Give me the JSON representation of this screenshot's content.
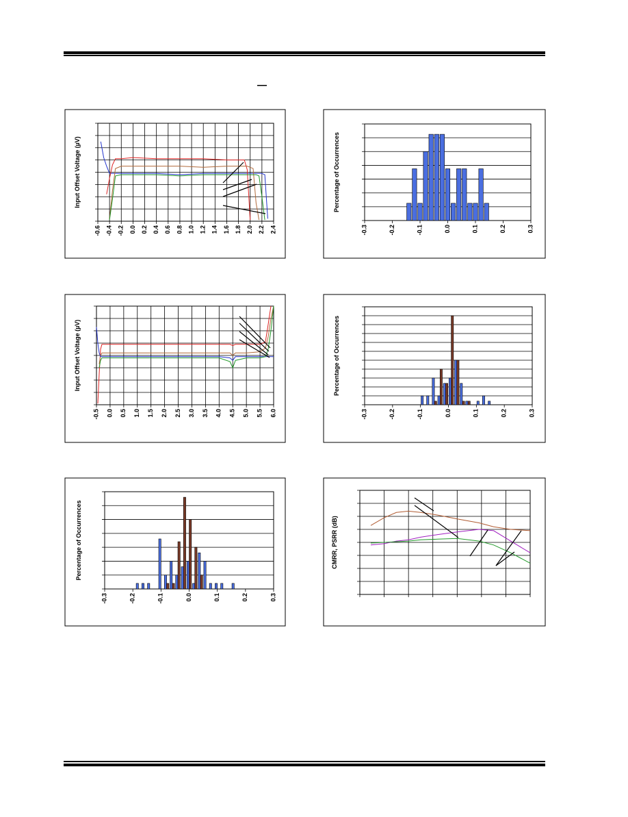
{
  "chart_data": [
    {
      "type": "line",
      "ylabel": "Input Offset Voltage (µV)",
      "grid": "both",
      "xlim": [
        -0.6,
        2.4
      ],
      "xticks": [
        {
          "value": -0.6,
          "label": "-0.6"
        },
        {
          "value": -0.4,
          "label": "-0.4"
        },
        {
          "value": -0.2,
          "label": "-0.2"
        },
        {
          "value": 0,
          "label": "0.0"
        },
        {
          "value": 0.2,
          "label": "0.2"
        },
        {
          "value": 0.4,
          "label": "0.4"
        },
        {
          "value": 0.6,
          "label": "0.6"
        },
        {
          "value": 0.8,
          "label": "0.8"
        },
        {
          "value": 1,
          "label": "1.0"
        },
        {
          "value": 1.2,
          "label": "1.2"
        },
        {
          "value": 1.4,
          "label": "1.4"
        },
        {
          "value": 1.6,
          "label": "1.6"
        },
        {
          "value": 1.8,
          "label": "1.8"
        },
        {
          "value": 2,
          "label": "2.0"
        },
        {
          "value": 2.2,
          "label": "2.2"
        },
        {
          "value": 2.4,
          "label": "2.4"
        }
      ],
      "ylim": [
        0,
        8
      ],
      "yticks": [
        0,
        1,
        2,
        3,
        4,
        5,
        6,
        7,
        8
      ],
      "x": [
        -0.55,
        -0.5,
        -0.45,
        -0.4,
        -0.35,
        -0.3,
        -0.2,
        0,
        0.4,
        0.8,
        1.2,
        1.6,
        1.9,
        1.95,
        2.0,
        2.05,
        2.1,
        2.15,
        2.2,
        2.25,
        2.3
      ],
      "series": [
        {
          "color": "#2233cc",
          "values": [
            6.5,
            5.2,
            4.5,
            3.9,
            3.9,
            3.9,
            3.9,
            3.9,
            3.9,
            3.8,
            3.9,
            3.9,
            3.9,
            3.9,
            3.9,
            3.9,
            3.9,
            3.9,
            3.9,
            3.8,
            0.2
          ]
        },
        {
          "color": "#dd2222",
          "values": [
            null,
            null,
            2.2,
            3.5,
            4.6,
            5.1,
            5.1,
            5.2,
            5.1,
            5.1,
            5.1,
            5.0,
            5.0,
            4.2,
            0.1,
            null,
            null,
            null,
            null,
            null,
            null
          ]
        },
        {
          "color": "#b06a3a",
          "values": [
            null,
            null,
            null,
            0.2,
            2.5,
            4.3,
            4.5,
            4.5,
            4.5,
            4.5,
            4.4,
            4.5,
            4.5,
            4.5,
            4.4,
            4.3,
            1.5,
            0.1,
            null,
            null,
            null
          ]
        },
        {
          "color": "#22992a",
          "values": [
            null,
            null,
            null,
            0.1,
            1.8,
            3.7,
            3.8,
            3.8,
            3.8,
            3.7,
            3.8,
            3.8,
            3.8,
            3.8,
            3.8,
            3.8,
            3.8,
            3.7,
            2.0,
            0.1,
            null
          ]
        }
      ]
    },
    {
      "type": "histogram",
      "ylabel": "Percentage of Occurrences",
      "grid": "y",
      "xlim": [
        -0.3,
        0.3
      ],
      "xticks": [
        {
          "value": -0.3,
          "label": "-0.3"
        },
        {
          "value": -0.2,
          "label": "-0.2"
        },
        {
          "value": -0.1,
          "label": "-0.1"
        },
        {
          "value": 0,
          "label": "0.0"
        },
        {
          "value": 0.1,
          "label": "0.1"
        },
        {
          "value": 0.2,
          "label": "0.2"
        },
        {
          "value": 0.3,
          "label": "0.3"
        }
      ],
      "ylim": [
        0,
        14
      ],
      "yticks": [
        0,
        2,
        4,
        6,
        8,
        10,
        12,
        14
      ],
      "bins": [
        -0.15,
        -0.13,
        -0.11,
        -0.09,
        -0.07,
        -0.05,
        -0.03,
        -0.01,
        0.01,
        0.03,
        0.05,
        0.07,
        0.09,
        0.11,
        0.13,
        0.15
      ],
      "series": [
        {
          "color": "#4a6ee0",
          "values": [
            2.5,
            7.5,
            2.5,
            10,
            12.5,
            12.5,
            12.5,
            7.5,
            2.5,
            7.5,
            7.5,
            2.5,
            2.5,
            7.5,
            2.5
          ]
        }
      ]
    },
    {
      "type": "line",
      "ylabel": "Input Offset Voltage (µV)",
      "grid": "both",
      "xlim": [
        -0.5,
        6.0
      ],
      "xticks": [
        {
          "value": -0.5,
          "label": "-0.5"
        },
        {
          "value": 0,
          "label": "0.0"
        },
        {
          "value": 0.5,
          "label": "0.5"
        },
        {
          "value": 1,
          "label": "1.0"
        },
        {
          "value": 1.5,
          "label": "1.5"
        },
        {
          "value": 2,
          "label": "2.0"
        },
        {
          "value": 2.5,
          "label": "2.5"
        },
        {
          "value": 3,
          "label": "3.0"
        },
        {
          "value": 3.5,
          "label": "3.5"
        },
        {
          "value": 4,
          "label": "4.0"
        },
        {
          "value": 4.5,
          "label": "4.5"
        },
        {
          "value": 5,
          "label": "5.0"
        },
        {
          "value": 5.5,
          "label": "5.5"
        },
        {
          "value": 6,
          "label": "6.0"
        }
      ],
      "ylim": [
        0,
        8
      ],
      "yticks": [
        0,
        1,
        2,
        3,
        4,
        5,
        6,
        7,
        8
      ],
      "x": [
        -0.5,
        -0.45,
        -0.4,
        -0.35,
        -0.3,
        -0.2,
        0,
        1,
        2,
        3,
        4,
        4.4,
        4.5,
        4.6,
        5,
        5.5,
        5.7,
        5.8,
        5.9,
        6.0
      ],
      "series": [
        {
          "color": "#dd2222",
          "values": [
            null,
            0.1,
            2.5,
            4.5,
            4.9,
            4.9,
            4.9,
            4.9,
            4.9,
            4.9,
            4.9,
            4.9,
            4.8,
            4.9,
            4.9,
            4.9,
            5.1,
            6.5,
            8,
            null
          ]
        },
        {
          "color": "#b06a3a",
          "values": [
            null,
            null,
            3.3,
            4.0,
            4.2,
            4.2,
            4.2,
            4.2,
            4.2,
            4.2,
            4.2,
            4.2,
            4.0,
            4.2,
            4.2,
            4.3,
            4.6,
            5.5,
            7,
            8
          ]
        },
        {
          "color": "#2233cc",
          "values": [
            6.3,
            5.0,
            4.2,
            3.9,
            3.9,
            3.9,
            3.9,
            3.9,
            3.9,
            3.9,
            3.9,
            3.8,
            3.6,
            3.9,
            3.9,
            3.9,
            3.9,
            3.9,
            3.9,
            3.9
          ]
        },
        {
          "color": "#22992a",
          "values": [
            null,
            null,
            3.0,
            3.6,
            3.8,
            3.8,
            3.8,
            3.8,
            3.8,
            3.8,
            3.8,
            3.5,
            3.0,
            3.6,
            3.8,
            3.8,
            3.9,
            4.5,
            6,
            8
          ]
        }
      ]
    },
    {
      "type": "histogram",
      "ylabel": "Percentage of Occurrences",
      "grid": "y",
      "xlim": [
        -0.3,
        0.3
      ],
      "xticks": [
        {
          "value": -0.3,
          "label": "-0.3"
        },
        {
          "value": -0.2,
          "label": "-0.2"
        },
        {
          "value": -0.1,
          "label": "-0.1"
        },
        {
          "value": 0,
          "label": "0.0"
        },
        {
          "value": 0.1,
          "label": "0.1"
        },
        {
          "value": 0.2,
          "label": "0.2"
        },
        {
          "value": 0.3,
          "label": "0.3"
        }
      ],
      "ylim": [
        0,
        55
      ],
      "yticks": [
        0,
        5,
        10,
        15,
        20,
        25,
        30,
        35,
        40,
        45,
        50,
        55
      ],
      "bins": [
        -0.1,
        -0.08,
        -0.06,
        -0.04,
        -0.02,
        0,
        0.02,
        0.04,
        0.06,
        0.08,
        0.1,
        0.12,
        0.14,
        0.16
      ],
      "series": [
        {
          "color": "#4a6ee0",
          "values": [
            5,
            5,
            15,
            5,
            12,
            15,
            25,
            12,
            2,
            0,
            2,
            5,
            2
          ]
        },
        {
          "color": "#7a3a28",
          "values": [
            0,
            0,
            2,
            20,
            12,
            50,
            25,
            2,
            2,
            0,
            0,
            0,
            0
          ]
        }
      ]
    },
    {
      "type": "histogram",
      "ylabel": "Percentage of Occurrences",
      "grid": "y",
      "xlim": [
        -0.3,
        0.3
      ],
      "xticks": [
        {
          "value": -0.3,
          "label": "-0.3"
        },
        {
          "value": -0.2,
          "label": "-0.2"
        },
        {
          "value": -0.1,
          "label": "-0.1"
        },
        {
          "value": 0,
          "label": "0.0"
        },
        {
          "value": 0.1,
          "label": "0.1"
        },
        {
          "value": 0.2,
          "label": "0.2"
        },
        {
          "value": 0.3,
          "label": "0.3"
        }
      ],
      "ylim": [
        0,
        35
      ],
      "yticks": [
        0,
        5,
        10,
        15,
        20,
        25,
        30,
        35
      ],
      "bins": [
        -0.19,
        -0.17,
        -0.15,
        -0.13,
        -0.11,
        -0.09,
        -0.07,
        -0.05,
        -0.03,
        -0.01,
        0.01,
        0.03,
        0.05,
        0.07,
        0.09,
        0.11,
        0.13,
        0.15,
        0.17
      ],
      "series": [
        {
          "color": "#4a6ee0",
          "values": [
            2,
            2,
            2,
            0,
            18,
            5,
            10,
            5,
            8,
            10,
            2,
            13,
            10,
            2,
            2,
            2,
            0,
            2
          ]
        },
        {
          "color": "#7a3a28",
          "values": [
            0,
            0,
            0,
            0,
            0,
            2,
            2,
            17,
            33,
            25,
            15,
            5,
            0,
            0,
            0,
            0,
            0,
            0
          ]
        }
      ]
    },
    {
      "type": "line",
      "ylabel": "CMRR, PSRR (dB)",
      "grid": "both",
      "xlim": [
        0,
        7
      ],
      "xticks": [
        0,
        1,
        2,
        3,
        4,
        5,
        6,
        7
      ],
      "ylim": [
        0,
        8
      ],
      "yticks": [
        0,
        1,
        2,
        3,
        4,
        5,
        6,
        7,
        8
      ],
      "x": [
        0.45,
        1.0,
        1.5,
        2.0,
        2.5,
        3.2,
        4.0,
        4.9,
        5.5,
        6.2,
        7.0
      ],
      "series": [
        {
          "color": "#b05a30",
          "values": [
            5.3,
            5.9,
            6.3,
            6.4,
            6.3,
            6.1,
            5.8,
            5.5,
            5.2,
            5.0,
            4.9
          ]
        },
        {
          "color": "#a020c0",
          "values": [
            3.8,
            3.9,
            4.1,
            4.2,
            4.4,
            4.6,
            4.8,
            5.0,
            4.9,
            4.1,
            3.2
          ]
        },
        {
          "color": "#22992a",
          "values": [
            3.95,
            4.0,
            4.05,
            4.1,
            4.2,
            4.25,
            4.3,
            4.1,
            3.8,
            3.2,
            2.4
          ]
        }
      ]
    }
  ]
}
